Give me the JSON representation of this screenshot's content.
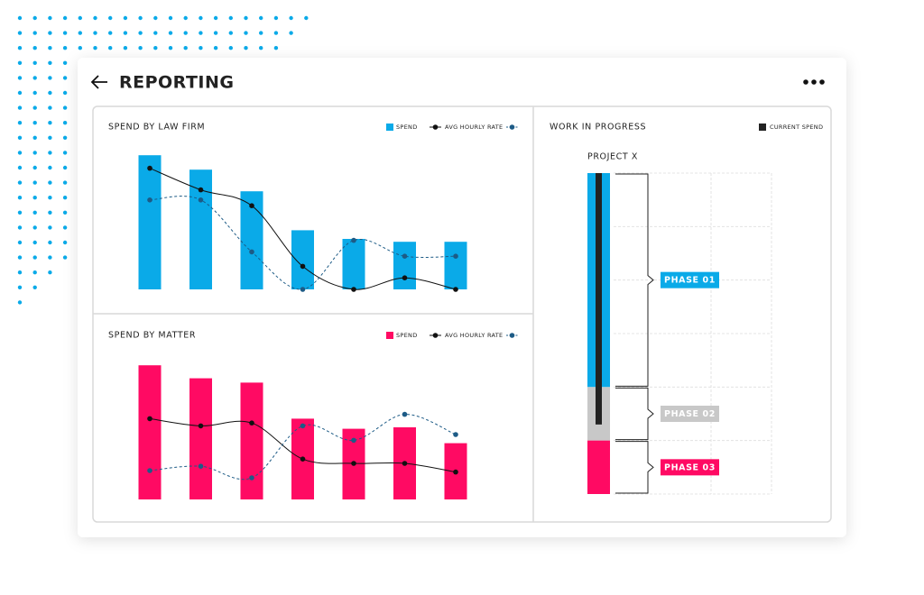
{
  "header": {
    "title": "REPORTING"
  },
  "chart_data": [
    {
      "type": "combo",
      "title": "SPEND BY LAW FIRM",
      "ylim": [
        0,
        100
      ],
      "categories": [
        null,
        null,
        null,
        null,
        null,
        null,
        null
      ],
      "series": [
        {
          "name": "SPEND",
          "kind": "bar",
          "color": "#0aaae8",
          "values": [
            93,
            83,
            68,
            41,
            35,
            33,
            33
          ]
        },
        {
          "name": "AVG HOURLY RATE",
          "kind": "line",
          "style": "solid",
          "color": "#111111",
          "values": [
            84,
            69,
            58,
            16,
            0,
            8,
            0
          ]
        },
        {
          "name": null,
          "kind": "line",
          "style": "dashed",
          "color": "#1d5b86",
          "values": [
            62,
            62,
            26,
            0,
            34,
            23,
            23
          ]
        }
      ]
    },
    {
      "type": "combo",
      "title": "SPEND BY MATTER",
      "ylim": [
        0,
        100
      ],
      "categories": [
        null,
        null,
        null,
        null,
        null,
        null,
        null
      ],
      "series": [
        {
          "name": "SPEND",
          "kind": "bar",
          "color": "#ff0a63",
          "values": [
            93,
            84,
            81,
            56,
            49,
            50,
            39
          ]
        },
        {
          "name": "AVG HOURLY RATE",
          "kind": "line",
          "style": "solid",
          "color": "#111111",
          "values": [
            56,
            51,
            53,
            28,
            25,
            25,
            19
          ]
        },
        {
          "name": null,
          "kind": "line",
          "style": "dashed",
          "color": "#1d5b86",
          "values": [
            20,
            23,
            15,
            51,
            41,
            59,
            45
          ]
        }
      ]
    },
    {
      "type": "stacked",
      "title": "WORK IN PROGRESS",
      "categories": [
        "PROJECT X"
      ],
      "ylim": [
        0,
        120
      ],
      "yticks": [
        0,
        20,
        40,
        60,
        80,
        100,
        120
      ],
      "grid": true,
      "series": [
        {
          "name": "PHASE 01",
          "color": "#0aaae8",
          "values": [
            80
          ]
        },
        {
          "name": "PHASE 02",
          "color": "#c8c8c8",
          "values": [
            20
          ]
        },
        {
          "name": "PHASE 03",
          "color": "#ff0a63",
          "values": [
            20
          ]
        }
      ],
      "current": {
        "name": "CURRENT SPEND",
        "color": "#222222",
        "values": [
          94
        ]
      }
    }
  ]
}
